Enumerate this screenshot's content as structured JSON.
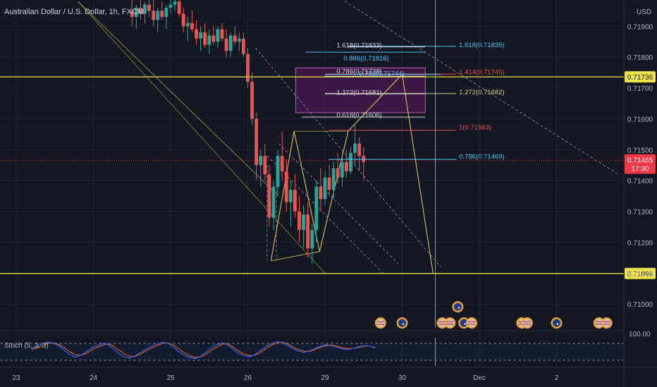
{
  "header": {
    "symbol_title": "Australian Dollar / U.S. Dollar, 1h, FXCM",
    "currency": "USD"
  },
  "colors": {
    "background": "#131722",
    "grid": "#1e2230",
    "axis_text": "#b2b5be",
    "bull": "#26a69a",
    "bear": "#ef5350",
    "yellow": "#f0e34a",
    "fib_cyan": "#4fc3f7",
    "fib_red": "#ef5350",
    "fib_khaki": "#d8cf92",
    "fib_white": "#d1d4dc",
    "pattern": "#c9b458",
    "dashed": "#787b86",
    "zone_fill": "#6a1b6a",
    "stoch_k": "#2962ff",
    "stoch_d": "#ff6d00",
    "price_badge": "#f23645",
    "cursor": "#26c6da"
  },
  "chart_data": {
    "type": "candlestick",
    "title": "Australian Dollar / U.S. Dollar, 1h, FXCM",
    "ylim": [
      0.70925,
      0.71985
    ],
    "y_ticks": [
      "0.71900",
      "0.71800",
      "0.71700",
      "0.71600",
      "0.71500",
      "0.71400",
      "0.71300",
      "0.71200",
      "0.71100",
      "0.71000"
    ],
    "x_ticks": [
      {
        "label": "23",
        "day": 0
      },
      {
        "label": "24",
        "day": 1
      },
      {
        "label": "25",
        "day": 2
      },
      {
        "label": "26",
        "day": 3
      },
      {
        "label": "29",
        "day": 4
      },
      {
        "label": "30",
        "day": 5
      },
      {
        "label": "Dec",
        "day": 6
      },
      {
        "label": "2",
        "day": 7
      }
    ],
    "current_price": {
      "price": "0.71465",
      "countdown": "17:30",
      "value": 0.71465
    },
    "horizontal_levels": [
      {
        "label": "0.71736",
        "value": 0.71736
      },
      {
        "label": "0.71099",
        "value": 0.71099
      }
    ],
    "fib_levels": [
      {
        "label": "1.618(0.71835)",
        "value": 0.71835,
        "color": "fib_cyan",
        "from": 4.3,
        "to": 5.7
      },
      {
        "label": "1.618(0.71833)",
        "value": 0.71833,
        "color": "fib_white",
        "from": 4.3,
        "to": 5.3
      },
      {
        "label": "0.886(0.71816)",
        "value": 0.71816,
        "color": "fib_cyan",
        "from": 3.75,
        "to": 5.3
      },
      {
        "label": "1.414(0.71745)",
        "value": 0.71745,
        "color": "fib_red",
        "from": 4.0,
        "to": 5.7
      },
      {
        "label": "0.786(0.71744)",
        "value": 0.71744,
        "color": "fib_cyan",
        "from": 4.0,
        "to": 5.5
      },
      {
        "label": "0.786(0.71738)",
        "value": 0.71738,
        "color": "fib_white",
        "from": 4.0,
        "to": 5.3
      },
      {
        "label": "1.272(0.71682)",
        "value": 0.71682,
        "color": "fib_khaki",
        "from": 4.0,
        "to": 5.7
      },
      {
        "label": "1.272(0.71681)",
        "value": 0.71681,
        "color": "fib_white",
        "from": 4.0,
        "to": 5.3
      },
      {
        "label": "0.618(0.71606)",
        "value": 0.71606,
        "color": "fib_white",
        "from": 3.7,
        "to": 5.3
      },
      {
        "label": "1(0.71563)",
        "value": 0.71563,
        "color": "fib_red",
        "from": 4.05,
        "to": 5.7
      },
      {
        "label": "0.786(0.71469)",
        "value": 0.71469,
        "color": "fib_cyan",
        "from": 4.05,
        "to": 5.7
      }
    ],
    "zone": {
      "from_day": 3.62,
      "to_day": 5.3,
      "top": 0.71765,
      "bottom": 0.7162
    },
    "candles_ohlc_summary": "Approx. hourly AUD/USD candles Nov 23 - Nov 29",
    "candles": [
      [
        0.7195,
        0.7199,
        0.719,
        0.7193
      ],
      [
        0.7193,
        0.7197,
        0.7189,
        0.7196
      ],
      [
        0.7196,
        0.7199,
        0.7192,
        0.7194
      ],
      [
        0.7194,
        0.7198,
        0.7191,
        0.7197
      ],
      [
        0.7197,
        0.7199,
        0.7193,
        0.7195
      ],
      [
        0.7195,
        0.7199,
        0.719,
        0.7192
      ],
      [
        0.7192,
        0.7196,
        0.7188,
        0.7195
      ],
      [
        0.7195,
        0.7198,
        0.7192,
        0.7193
      ],
      [
        0.7193,
        0.7197,
        0.7189,
        0.7196
      ],
      [
        0.7196,
        0.7199,
        0.7194,
        0.7197
      ],
      [
        0.7197,
        0.7199,
        0.7195,
        0.7198
      ],
      [
        0.7198,
        0.7199,
        0.7193,
        0.7194
      ],
      [
        0.7194,
        0.7196,
        0.7188,
        0.719
      ],
      [
        0.719,
        0.7193,
        0.7185,
        0.7191
      ],
      [
        0.7191,
        0.7195,
        0.7188,
        0.7189
      ],
      [
        0.7189,
        0.7192,
        0.7184,
        0.7186
      ],
      [
        0.7186,
        0.719,
        0.7182,
        0.7188
      ],
      [
        0.7188,
        0.7191,
        0.7183,
        0.7184
      ],
      [
        0.7184,
        0.7189,
        0.7181,
        0.7187
      ],
      [
        0.7187,
        0.719,
        0.7184,
        0.7185
      ],
      [
        0.7185,
        0.719,
        0.7183,
        0.7189
      ],
      [
        0.7189,
        0.7191,
        0.7185,
        0.7186
      ],
      [
        0.7186,
        0.7189,
        0.718,
        0.7182
      ],
      [
        0.7182,
        0.7188,
        0.718,
        0.7187
      ],
      [
        0.7187,
        0.719,
        0.7184,
        0.7185
      ],
      [
        0.7185,
        0.7188,
        0.7182,
        0.7186
      ],
      [
        0.7186,
        0.7188,
        0.718,
        0.7181
      ],
      [
        0.7181,
        0.7183,
        0.717,
        0.7172
      ],
      [
        0.7172,
        0.7175,
        0.7158,
        0.716
      ],
      [
        0.716,
        0.7162,
        0.714,
        0.7145
      ],
      [
        0.7145,
        0.715,
        0.7138,
        0.7148
      ],
      [
        0.7148,
        0.7152,
        0.714,
        0.7142
      ],
      [
        0.7142,
        0.7145,
        0.7125,
        0.7128
      ],
      [
        0.7128,
        0.714,
        0.7124,
        0.7138
      ],
      [
        0.7138,
        0.715,
        0.7135,
        0.7148
      ],
      [
        0.7148,
        0.7156,
        0.714,
        0.7143
      ],
      [
        0.7143,
        0.7147,
        0.713,
        0.7133
      ],
      [
        0.7133,
        0.714,
        0.7125,
        0.7137
      ],
      [
        0.7137,
        0.7142,
        0.7128,
        0.713
      ],
      [
        0.713,
        0.7135,
        0.712,
        0.7124
      ],
      [
        0.7124,
        0.7132,
        0.7118,
        0.7129
      ],
      [
        0.7129,
        0.7133,
        0.7115,
        0.7118
      ],
      [
        0.7118,
        0.7126,
        0.7113,
        0.7124
      ],
      [
        0.7124,
        0.714,
        0.712,
        0.7138
      ],
      [
        0.7138,
        0.7144,
        0.713,
        0.7134
      ],
      [
        0.7134,
        0.7143,
        0.7132,
        0.7141
      ],
      [
        0.7141,
        0.7145,
        0.7135,
        0.7137
      ],
      [
        0.7137,
        0.7146,
        0.7134,
        0.7144
      ],
      [
        0.7144,
        0.7149,
        0.7139,
        0.7141
      ],
      [
        0.7141,
        0.7148,
        0.7138,
        0.7146
      ],
      [
        0.7146,
        0.715,
        0.7141,
        0.7143
      ],
      [
        0.7143,
        0.7151,
        0.7142,
        0.7149
      ],
      [
        0.7149,
        0.7158,
        0.7145,
        0.7152
      ],
      [
        0.7152,
        0.7154,
        0.7143,
        0.7148
      ],
      [
        0.7148,
        0.7151,
        0.714,
        0.7146
      ]
    ]
  },
  "stoch": {
    "label": "Stoch (5, 3, 3)",
    "ylim": [
      0,
      100
    ],
    "axis_label": "100.00",
    "bands": [
      80,
      20
    ],
    "k": [
      62,
      70,
      78,
      85,
      80,
      72,
      55,
      40,
      32,
      38,
      50,
      64,
      72,
      80,
      76,
      60,
      44,
      32,
      28,
      36,
      48,
      60,
      70,
      78,
      84,
      80,
      66,
      50,
      38,
      30,
      26,
      34,
      50,
      66,
      76,
      82,
      74,
      58,
      44,
      36,
      32,
      40,
      56,
      70,
      80,
      86,
      82,
      72,
      60,
      52,
      48,
      54,
      62,
      70,
      76,
      72,
      66,
      60,
      58,
      62,
      68,
      72,
      70,
      64
    ],
    "d": [
      58,
      64,
      72,
      80,
      82,
      76,
      64,
      50,
      40,
      38,
      44,
      56,
      66,
      74,
      78,
      70,
      56,
      42,
      34,
      34,
      42,
      54,
      64,
      72,
      80,
      82,
      74,
      60,
      46,
      36,
      30,
      32,
      42,
      56,
      68,
      78,
      78,
      66,
      52,
      42,
      36,
      38,
      48,
      62,
      74,
      82,
      84,
      78,
      66,
      58,
      52,
      52,
      58,
      66,
      72,
      74,
      70,
      64,
      62,
      62,
      66,
      70,
      70,
      66
    ]
  },
  "events": {
    "description": "economic calendar event markers",
    "markers": [
      {
        "day": 4.72,
        "flag": "us"
      },
      {
        "day": 5.0,
        "flag": "au"
      },
      {
        "day": 5.52,
        "flag": "us"
      },
      {
        "day": 5.62,
        "flag": "us"
      },
      {
        "day": 5.8,
        "flag": "au"
      },
      {
        "day": 5.9,
        "flag": "us"
      },
      {
        "day": 6.55,
        "flag": "us"
      },
      {
        "day": 6.62,
        "flag": "us"
      },
      {
        "day": 7.0,
        "flag": "au"
      },
      {
        "day": 7.55,
        "flag": "us"
      },
      {
        "day": 7.65,
        "flag": "us"
      }
    ],
    "stack": {
      "day": 5.72,
      "flag": "au"
    }
  }
}
